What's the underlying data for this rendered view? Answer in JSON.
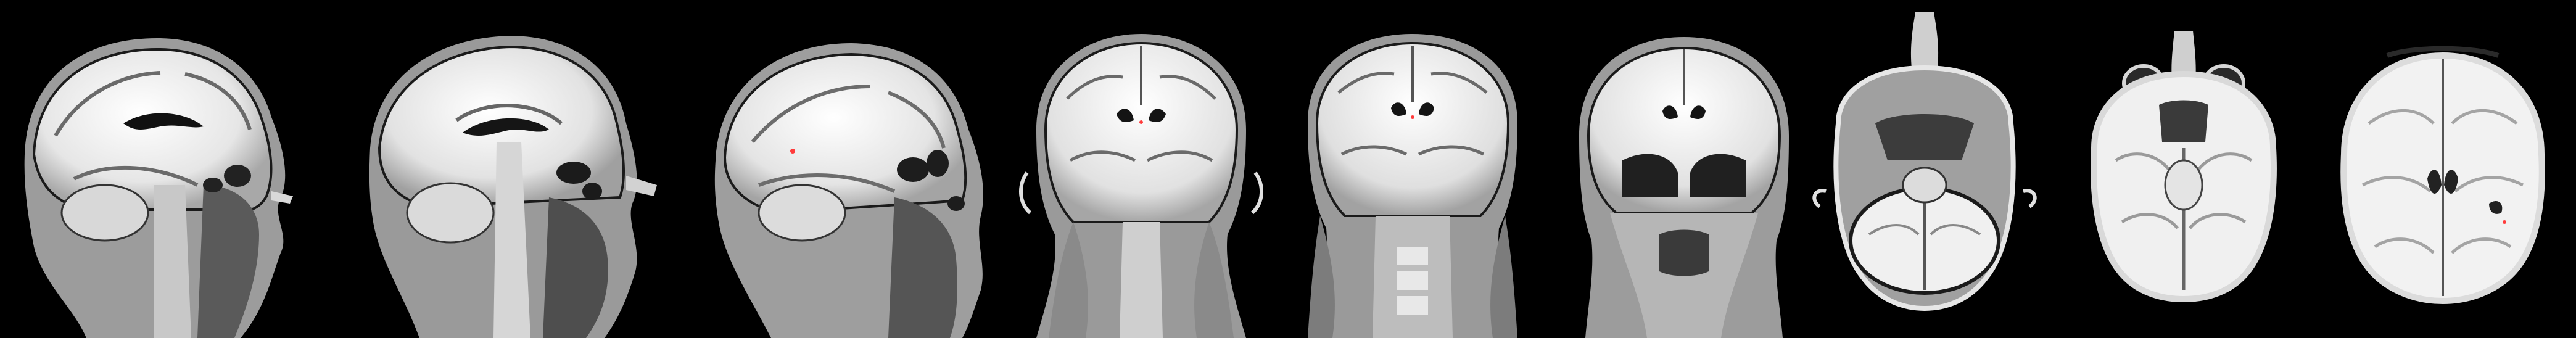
{
  "strip": {
    "panel_count": 9,
    "views": [
      {
        "plane": "sagittal",
        "name": "sagittal-slice-1"
      },
      {
        "plane": "sagittal",
        "name": "sagittal-slice-2"
      },
      {
        "plane": "sagittal",
        "name": "sagittal-slice-3"
      },
      {
        "plane": "coronal",
        "name": "coronal-slice-1"
      },
      {
        "plane": "coronal",
        "name": "coronal-slice-2"
      },
      {
        "plane": "coronal",
        "name": "coronal-slice-3"
      },
      {
        "plane": "axial",
        "name": "axial-slice-1"
      },
      {
        "plane": "axial",
        "name": "axial-slice-2"
      },
      {
        "plane": "axial",
        "name": "axial-slice-3"
      }
    ],
    "colors": {
      "background": "#000000",
      "tissue_bright": "#f2f2f2",
      "tissue_mid": "#b9b9b9",
      "tissue_dark": "#4a4a4a",
      "marker": "#ff3b3b"
    }
  }
}
